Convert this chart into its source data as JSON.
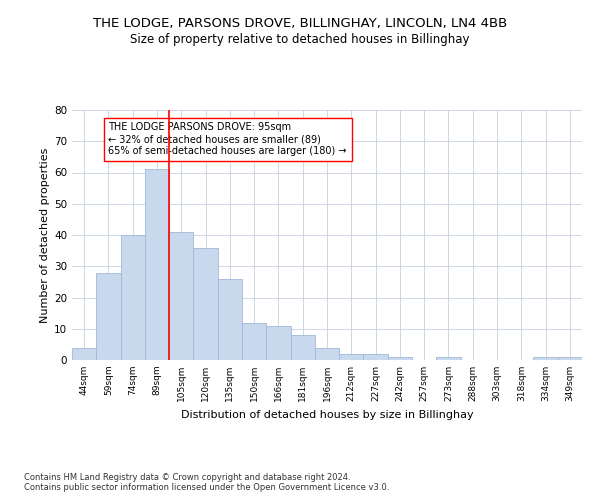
{
  "title": "THE LODGE, PARSONS DROVE, BILLINGHAY, LINCOLN, LN4 4BB",
  "subtitle": "Size of property relative to detached houses in Billinghay",
  "xlabel": "Distribution of detached houses by size in Billinghay",
  "ylabel": "Number of detached properties",
  "categories": [
    "44sqm",
    "59sqm",
    "74sqm",
    "89sqm",
    "105sqm",
    "120sqm",
    "135sqm",
    "150sqm",
    "166sqm",
    "181sqm",
    "196sqm",
    "212sqm",
    "227sqm",
    "242sqm",
    "257sqm",
    "273sqm",
    "288sqm",
    "303sqm",
    "318sqm",
    "334sqm",
    "349sqm"
  ],
  "values": [
    4,
    28,
    40,
    61,
    41,
    36,
    26,
    12,
    11,
    8,
    4,
    2,
    2,
    1,
    0,
    1,
    0,
    0,
    0,
    1,
    1
  ],
  "bar_color": "#c9d9ed",
  "bar_edge_color": "#a0b8d8",
  "red_line_x": 3.5,
  "ylim": [
    0,
    80
  ],
  "yticks": [
    0,
    10,
    20,
    30,
    40,
    50,
    60,
    70,
    80
  ],
  "annotation_box_text": "THE LODGE PARSONS DROVE: 95sqm\n← 32% of detached houses are smaller (89)\n65% of semi-detached houses are larger (180) →",
  "footnote": "Contains HM Land Registry data © Crown copyright and database right 2024.\nContains public sector information licensed under the Open Government Licence v3.0.",
  "background_color": "#ffffff",
  "grid_color": "#c8d0e0",
  "title_fontsize": 9.5,
  "subtitle_fontsize": 8.5,
  "xlabel_fontsize": 8,
  "ylabel_fontsize": 8,
  "annotation_fontsize": 7,
  "footnote_fontsize": 6
}
